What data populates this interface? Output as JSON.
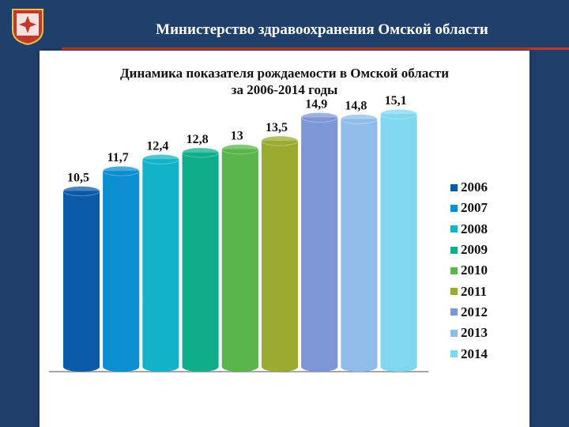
{
  "header": {
    "title": "Министерство здравоохранения Омской области"
  },
  "chart_data": {
    "type": "bar",
    "title": "Динамика показателя рождаемости в Омской области",
    "subtitle": "за 2006-2014 годы",
    "categories": [
      "2006",
      "2007",
      "2008",
      "2009",
      "2010",
      "2011",
      "2012",
      "2013",
      "2014"
    ],
    "values": [
      10.5,
      11.7,
      12.4,
      12.8,
      13,
      13.5,
      14.9,
      14.8,
      15.1
    ],
    "data_labels": [
      "10,5",
      "11,7",
      "12,4",
      "12,8",
      "13",
      "13,5",
      "14,9",
      "14,8",
      "15,1"
    ],
    "colors": [
      "#0a5aa8",
      "#0b8fd0",
      "#12b3c8",
      "#0fae8a",
      "#5ab54a",
      "#9aab2f",
      "#7d97d6",
      "#8fbce8",
      "#7fd8f0"
    ],
    "legend": {
      "position": "right",
      "entries": [
        "2006",
        "2007",
        "2008",
        "2009",
        "2010",
        "2011",
        "2012",
        "2013",
        "2014"
      ]
    },
    "grid": false
  }
}
